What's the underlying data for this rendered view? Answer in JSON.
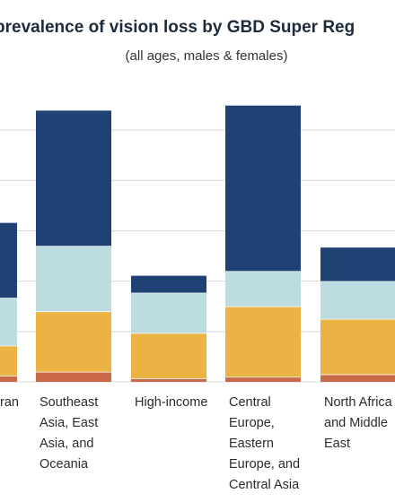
{
  "title": "prevalence of vision loss by GBD Super Reg",
  "subtitle": "(all ages, males & females)",
  "colors": {
    "band1": "#c9694a",
    "band2": "#ebb244",
    "band3": "#bcdce0",
    "band4": "#1f4174",
    "grid": "#d9d9d9"
  },
  "chart_data": {
    "type": "bar",
    "stacked": true,
    "grid": true,
    "categories": [
      [
        "ran"
      ],
      [
        "Southeast",
        "Asia, East",
        "Asia, and",
        "Oceania"
      ],
      [
        "High-income"
      ],
      [
        "Central",
        "Europe,",
        "Eastern",
        "Europe, and",
        "Central Asia"
      ],
      [
        "North Africa",
        "and Middle",
        "East"
      ]
    ],
    "series": [
      {
        "values": [
          1.2,
          2.0,
          0.7,
          1.0,
          1.5
        ]
      },
      {
        "values": [
          6.0,
          12.0,
          9.0,
          14.0,
          11.0
        ]
      },
      {
        "values": [
          9.5,
          13.0,
          8.0,
          7.0,
          7.5
        ]
      },
      {
        "values": [
          15.0,
          27.0,
          3.5,
          33.0,
          6.8
        ]
      }
    ],
    "ylim": [
      0,
      55
    ]
  }
}
